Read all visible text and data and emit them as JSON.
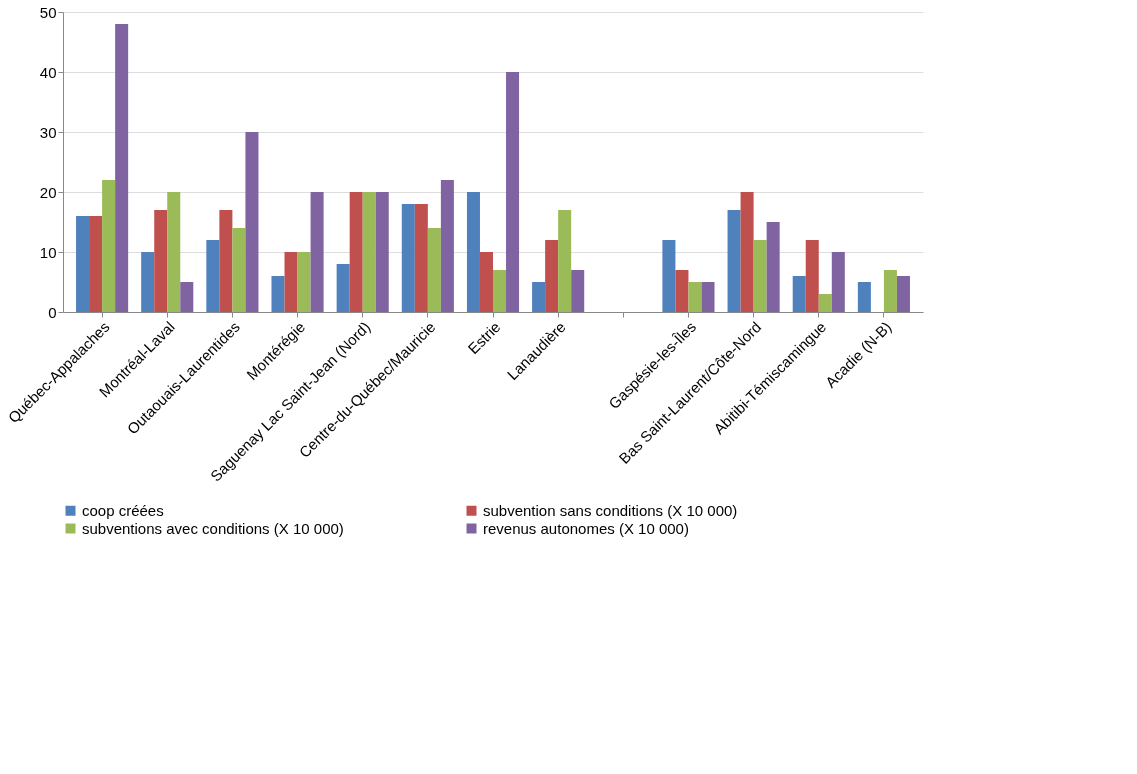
{
  "chart_data": {
    "type": "bar",
    "categories": [
      "Québec-Appalaches",
      "Montréal-Laval",
      "Outaouais-Laurentides",
      "Montérégie",
      "Saguenay Lac Saint-Jean (Nord)",
      "Centre-du-Québec/Mauricie",
      "Estrie",
      "Lanaudière",
      null,
      "Gaspésie-les-Îles",
      "Bas Saint-Laurent/Côte-Nord",
      "Abitibi-Témiscamingue",
      "Acadie (N-B)"
    ],
    "series": [
      {
        "name": "coop créées",
        "color": "#4f81bd",
        "values": [
          16,
          10,
          12,
          6,
          8,
          18,
          20,
          5,
          null,
          12,
          17,
          6,
          5
        ]
      },
      {
        "name": "subvention sans conditions (X 10 000)",
        "color": "#c0504d",
        "values": [
          16,
          17,
          17,
          10,
          20,
          18,
          10,
          12,
          null,
          7,
          20,
          12,
          0
        ]
      },
      {
        "name": "subventions avec conditions (X 10 000)",
        "color": "#9bbb59",
        "values": [
          22,
          20,
          14,
          10,
          20,
          14,
          7,
          17,
          null,
          5,
          12,
          3,
          7
        ]
      },
      {
        "name": "revenus autonomes (X 10 000)",
        "color": "#8064a2",
        "values": [
          48,
          5,
          30,
          20,
          20,
          22,
          40,
          7,
          null,
          5,
          15,
          10,
          6
        ]
      }
    ],
    "ylim": [
      0,
      50
    ],
    "yticks": [
      0,
      10,
      20,
      30,
      40,
      50
    ],
    "grid": "y",
    "legend": "bottom"
  }
}
